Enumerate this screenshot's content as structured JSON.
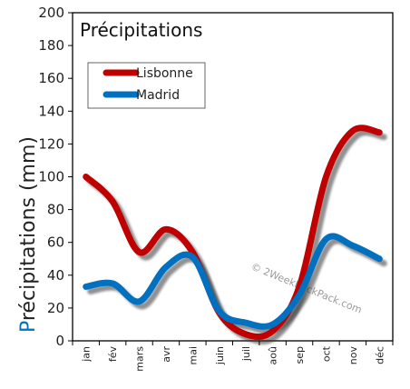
{
  "chart_data": {
    "type": "line",
    "title": "Précipitations",
    "ylabel": "Précipitations (mm)",
    "xlabel": "",
    "categories": [
      "jan",
      "fév",
      "mars",
      "avr",
      "mai",
      "juin",
      "juil",
      "aoû",
      "sep",
      "oct",
      "nov",
      "déc"
    ],
    "ylim": [
      0,
      200
    ],
    "yticks": [
      0,
      20,
      40,
      60,
      80,
      100,
      120,
      140,
      160,
      180,
      200
    ],
    "grid": false,
    "legend_position": "top-left",
    "series": [
      {
        "name": "Lisbonne",
        "color": "#c00000",
        "values": [
          100,
          85,
          54,
          68,
          54,
          17,
          4,
          6,
          33,
          100,
          128,
          127
        ]
      },
      {
        "name": "Madrid",
        "color": "#0070c0",
        "values": [
          33,
          35,
          24,
          45,
          51,
          18,
          11,
          10,
          28,
          62,
          58,
          50
        ]
      }
    ],
    "watermark": "© 2WeekBackPack.com"
  }
}
